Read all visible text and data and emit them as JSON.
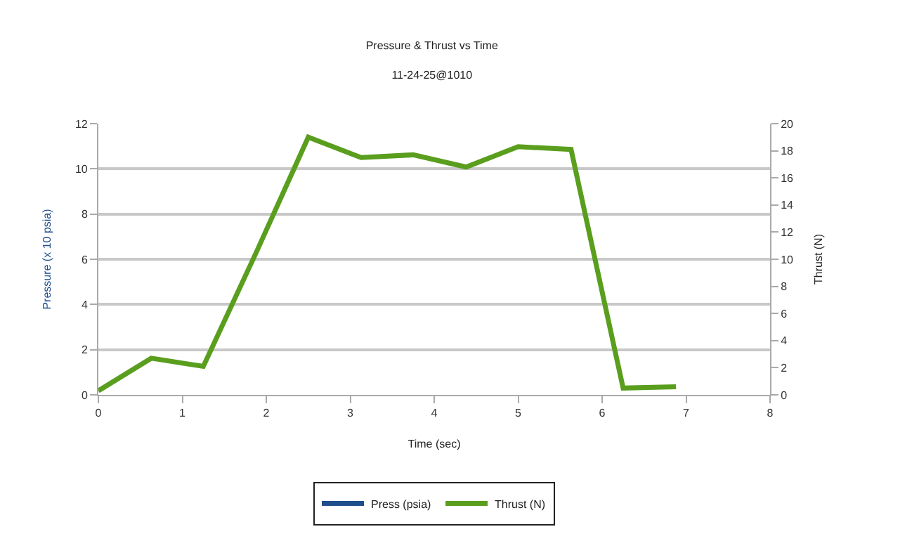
{
  "chart_data": {
    "type": "line",
    "title": "Pressure & Thrust vs Time",
    "subtitle": "11-24-25@1010",
    "xlabel": "Time (sec)",
    "ylabel": "Pressure (x 10 psia)",
    "y2label": "Thrust (N)",
    "x": [
      0,
      0.63,
      1.25,
      1.88,
      2.5,
      3.13,
      3.75,
      4.38,
      5.0,
      5.63,
      6.25,
      6.88
    ],
    "series": [
      {
        "name": "Press (psia)",
        "color": "#1f4e8c",
        "values": [
          null,
          null,
          null,
          null,
          null,
          null,
          null,
          null,
          null,
          null,
          null,
          null
        ]
      },
      {
        "name": "Thrust (N)",
        "color": "#5a9e1e",
        "axis": "y2",
        "values": [
          0.3,
          2.7,
          2.1,
          10.5,
          19.0,
          17.5,
          17.7,
          16.8,
          18.3,
          18.1,
          0.5,
          0.6
        ]
      }
    ],
    "xlim": [
      0,
      8
    ],
    "xticks": [
      0,
      1,
      2,
      3,
      4,
      5,
      6,
      7,
      8
    ],
    "ylim": [
      0,
      12
    ],
    "yticks": [
      0,
      2,
      4,
      6,
      8,
      10,
      12
    ],
    "y2lim": [
      0,
      20
    ],
    "y2ticks": [
      0,
      2,
      4,
      6,
      8,
      10,
      12,
      14,
      16,
      18,
      20
    ],
    "grid": "y",
    "legend": "bottom",
    "line_style": "solid"
  }
}
